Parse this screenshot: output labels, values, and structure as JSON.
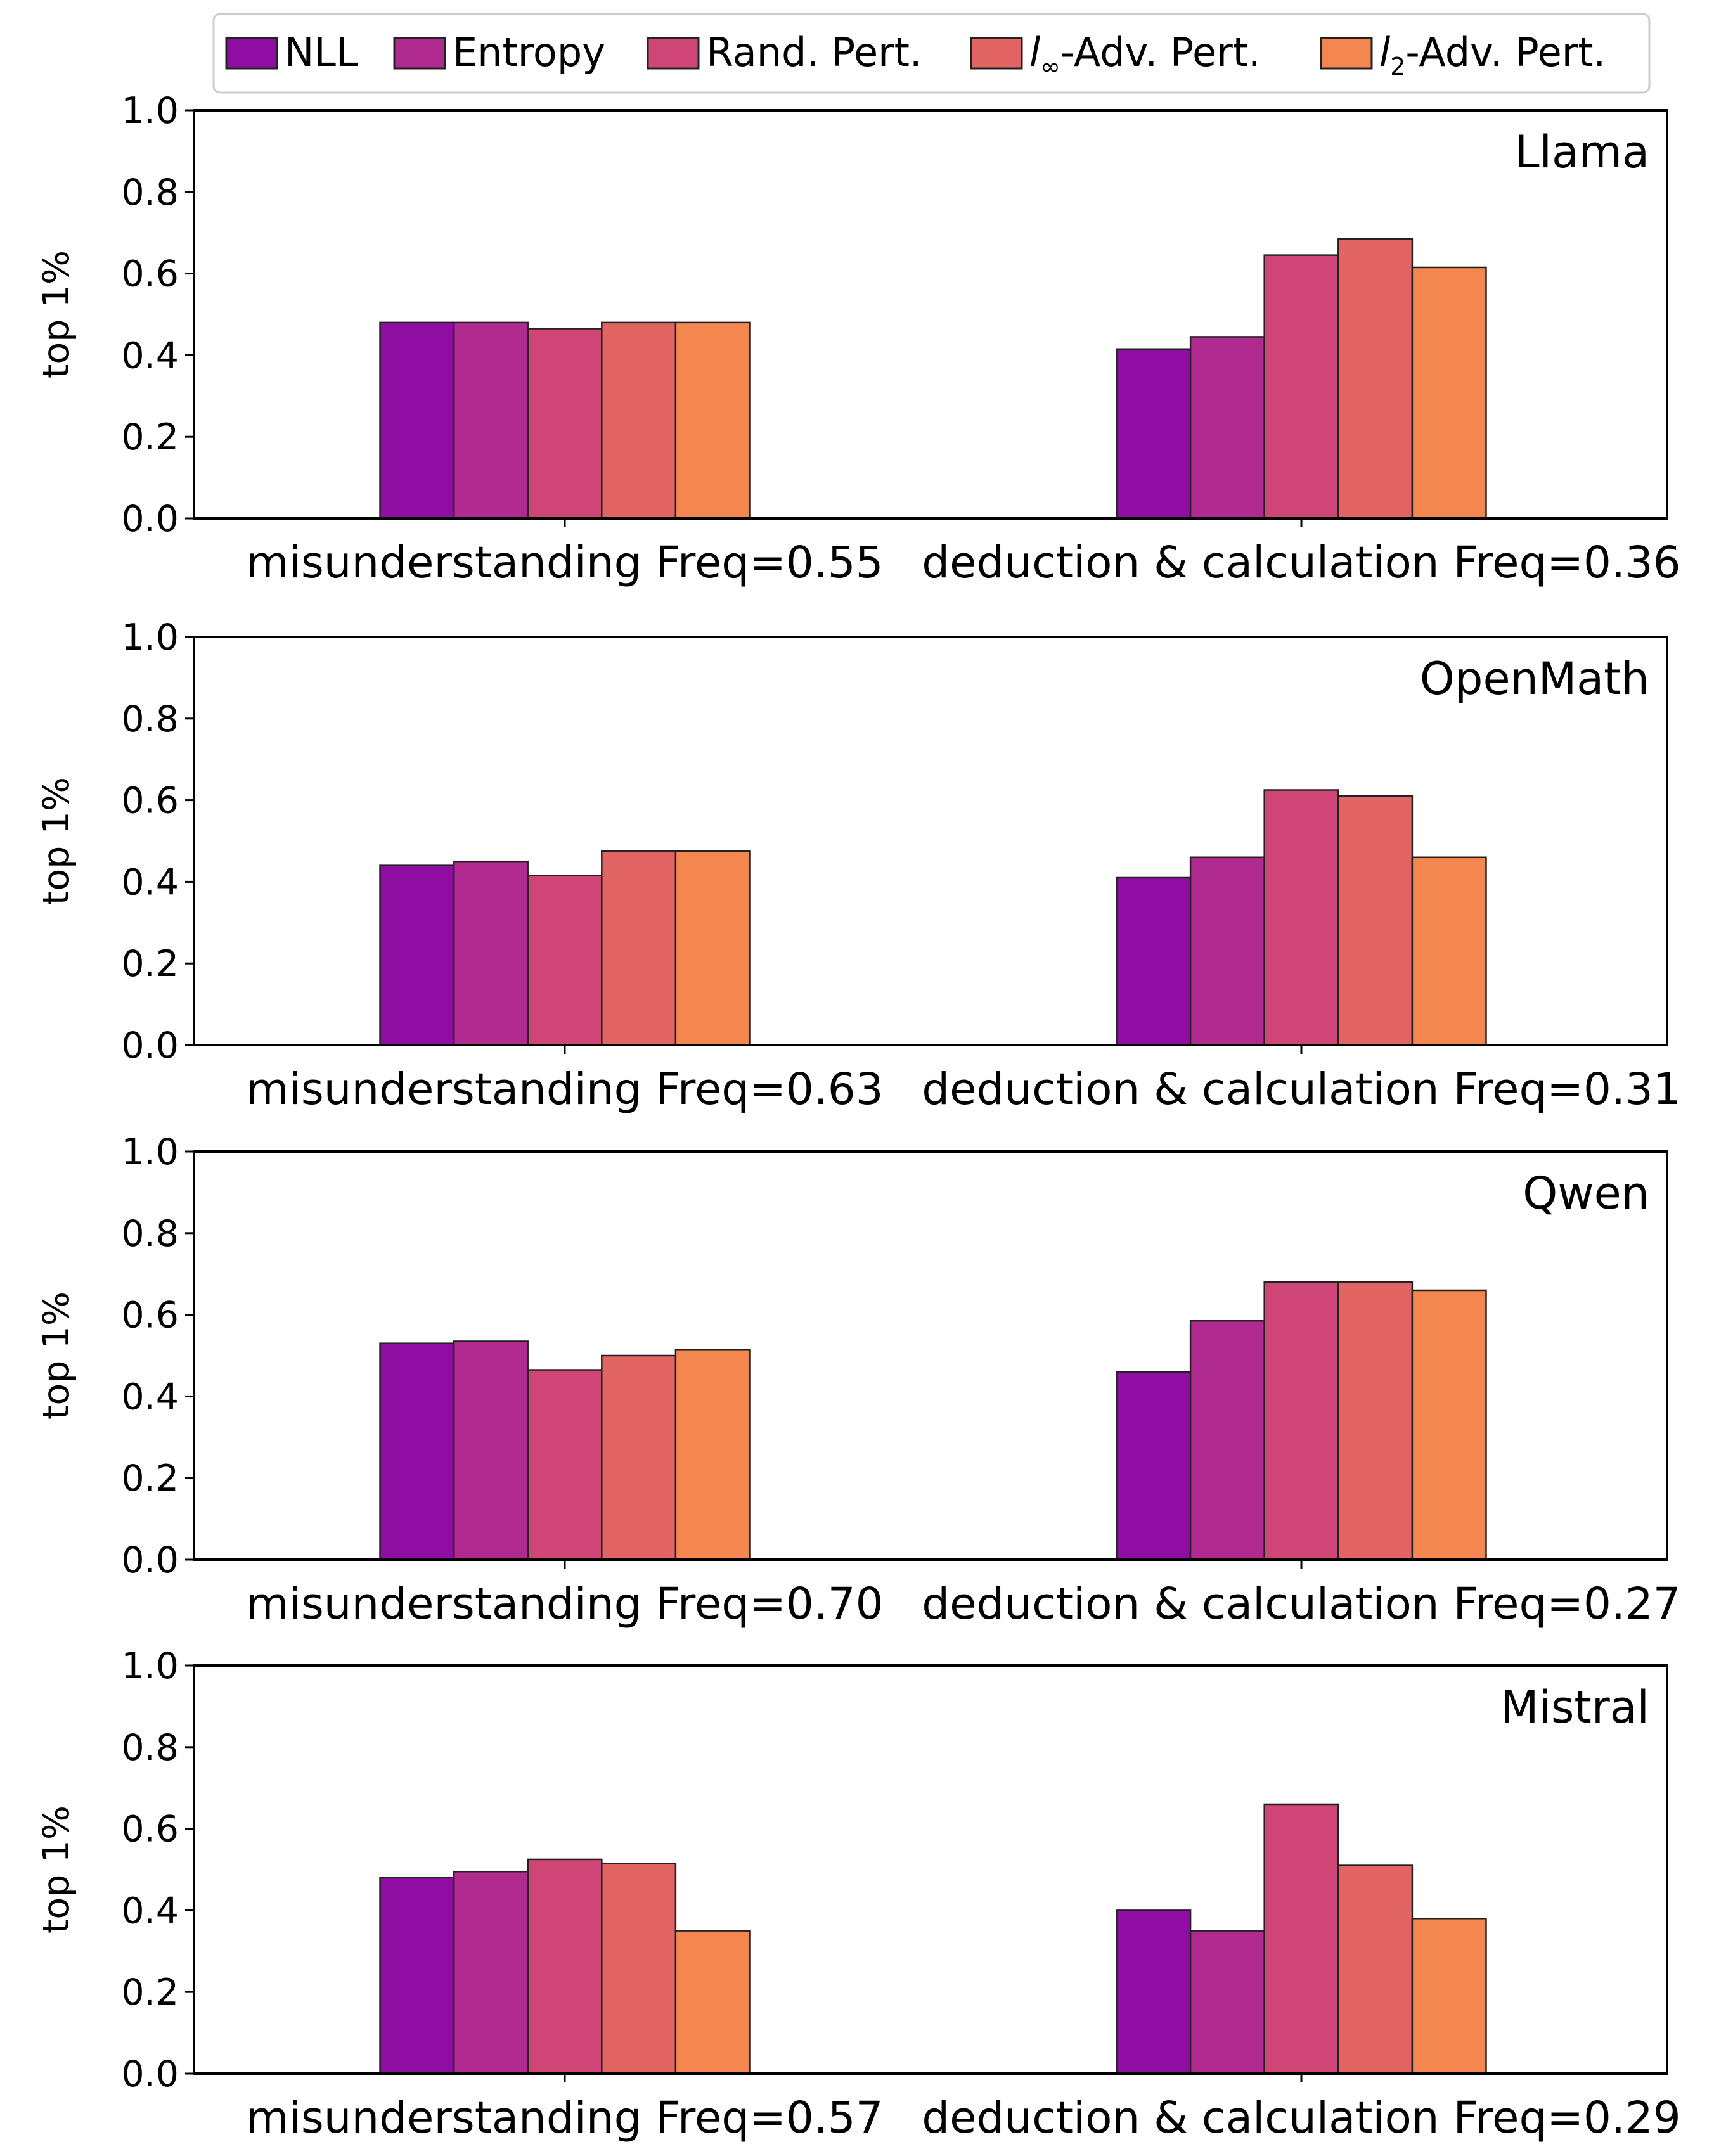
{
  "chart_data": [
    {
      "type": "bar",
      "title": "Llama",
      "ylabel": "top 1%",
      "ylim": [
        0,
        1.0
      ],
      "yticks": [
        "0.0",
        "0.2",
        "0.4",
        "0.6",
        "0.8",
        "1.0"
      ],
      "categories": [
        "misunderstanding Freq=0.55",
        "deduction & calculation Freq=0.36"
      ],
      "series": [
        {
          "name": "NLL",
          "values": [
            0.48,
            0.415
          ]
        },
        {
          "name": "Entropy",
          "values": [
            0.48,
            0.445
          ]
        },
        {
          "name": "Rand. Pert.",
          "values": [
            0.465,
            0.645
          ]
        },
        {
          "name": "l∞-Adv. Pert.",
          "values": [
            0.48,
            0.685
          ]
        },
        {
          "name": "l2-Adv. Pert.",
          "values": [
            0.48,
            0.615
          ]
        }
      ]
    },
    {
      "type": "bar",
      "title": "OpenMath",
      "ylabel": "top 1%",
      "ylim": [
        0,
        1.0
      ],
      "yticks": [
        "0.0",
        "0.2",
        "0.4",
        "0.6",
        "0.8",
        "1.0"
      ],
      "categories": [
        "misunderstanding Freq=0.63",
        "deduction & calculation Freq=0.31"
      ],
      "series": [
        {
          "name": "NLL",
          "values": [
            0.44,
            0.41
          ]
        },
        {
          "name": "Entropy",
          "values": [
            0.45,
            0.46
          ]
        },
        {
          "name": "Rand. Pert.",
          "values": [
            0.415,
            0.625
          ]
        },
        {
          "name": "l∞-Adv. Pert.",
          "values": [
            0.475,
            0.61
          ]
        },
        {
          "name": "l2-Adv. Pert.",
          "values": [
            0.475,
            0.46
          ]
        }
      ]
    },
    {
      "type": "bar",
      "title": "Qwen",
      "ylabel": "top 1%",
      "ylim": [
        0,
        1.0
      ],
      "yticks": [
        "0.0",
        "0.2",
        "0.4",
        "0.6",
        "0.8",
        "1.0"
      ],
      "categories": [
        "misunderstanding Freq=0.70",
        "deduction & calculation Freq=0.27"
      ],
      "series": [
        {
          "name": "NLL",
          "values": [
            0.53,
            0.46
          ]
        },
        {
          "name": "Entropy",
          "values": [
            0.535,
            0.585
          ]
        },
        {
          "name": "Rand. Pert.",
          "values": [
            0.465,
            0.68
          ]
        },
        {
          "name": "l∞-Adv. Pert.",
          "values": [
            0.5,
            0.68
          ]
        },
        {
          "name": "l2-Adv. Pert.",
          "values": [
            0.515,
            0.66
          ]
        }
      ]
    },
    {
      "type": "bar",
      "title": "Mistral",
      "ylabel": "top 1%",
      "ylim": [
        0,
        1.0
      ],
      "yticks": [
        "0.0",
        "0.2",
        "0.4",
        "0.6",
        "0.8",
        "1.0"
      ],
      "categories": [
        "misunderstanding Freq=0.57",
        "deduction & calculation Freq=0.29"
      ],
      "series": [
        {
          "name": "NLL",
          "values": [
            0.48,
            0.4
          ]
        },
        {
          "name": "Entropy",
          "values": [
            0.495,
            0.35
          ]
        },
        {
          "name": "Rand. Pert.",
          "values": [
            0.525,
            0.66
          ]
        },
        {
          "name": "l∞-Adv. Pert.",
          "values": [
            0.515,
            0.51
          ]
        },
        {
          "name": "l2-Adv. Pert.",
          "values": [
            0.35,
            0.38
          ]
        }
      ]
    }
  ],
  "legend": {
    "placement": "top-center",
    "items": [
      {
        "label": "NLL",
        "color": "#8f0da3"
      },
      {
        "label": "Entropy",
        "color": "#b02a8f"
      },
      {
        "label": "Rand. Pert.",
        "color": "#cf4576"
      },
      {
        "label": "-Adv. Pert.",
        "math": "l",
        "sub": "∞",
        "color": "#e36563"
      },
      {
        "label": "-Adv. Pert.",
        "math": "l",
        "sub": "2",
        "color": "#f3874f"
      }
    ]
  }
}
